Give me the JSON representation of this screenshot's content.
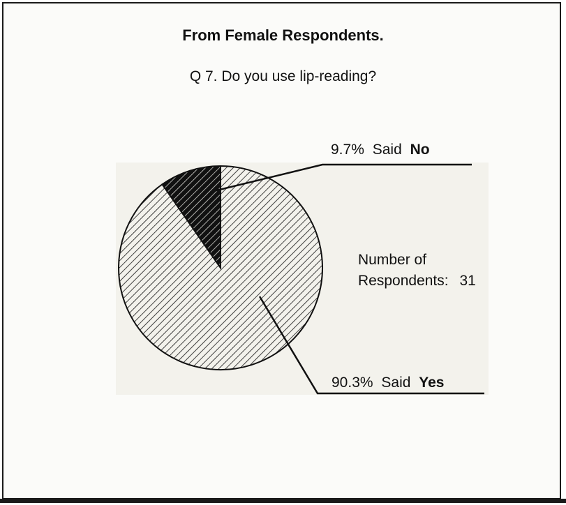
{
  "chart_data": {
    "type": "pie",
    "title": "From Female Respondents.",
    "subtitle": "Q 7. Do you use lip-reading?",
    "slices": [
      {
        "pct_label": "9.7%",
        "prefix": "Said",
        "answer": "No",
        "value": 9.7
      },
      {
        "pct_label": "90.3%",
        "prefix": "Said",
        "answer": "Yes",
        "value": 90.3
      }
    ],
    "annotation": {
      "line1": "Number of",
      "line2": "Respondents:",
      "count": "31"
    },
    "legend": "none",
    "grid": false
  },
  "colors": {
    "ink": "#111111",
    "panel": "#f3f2ec",
    "frame": "#1a1a1a"
  }
}
